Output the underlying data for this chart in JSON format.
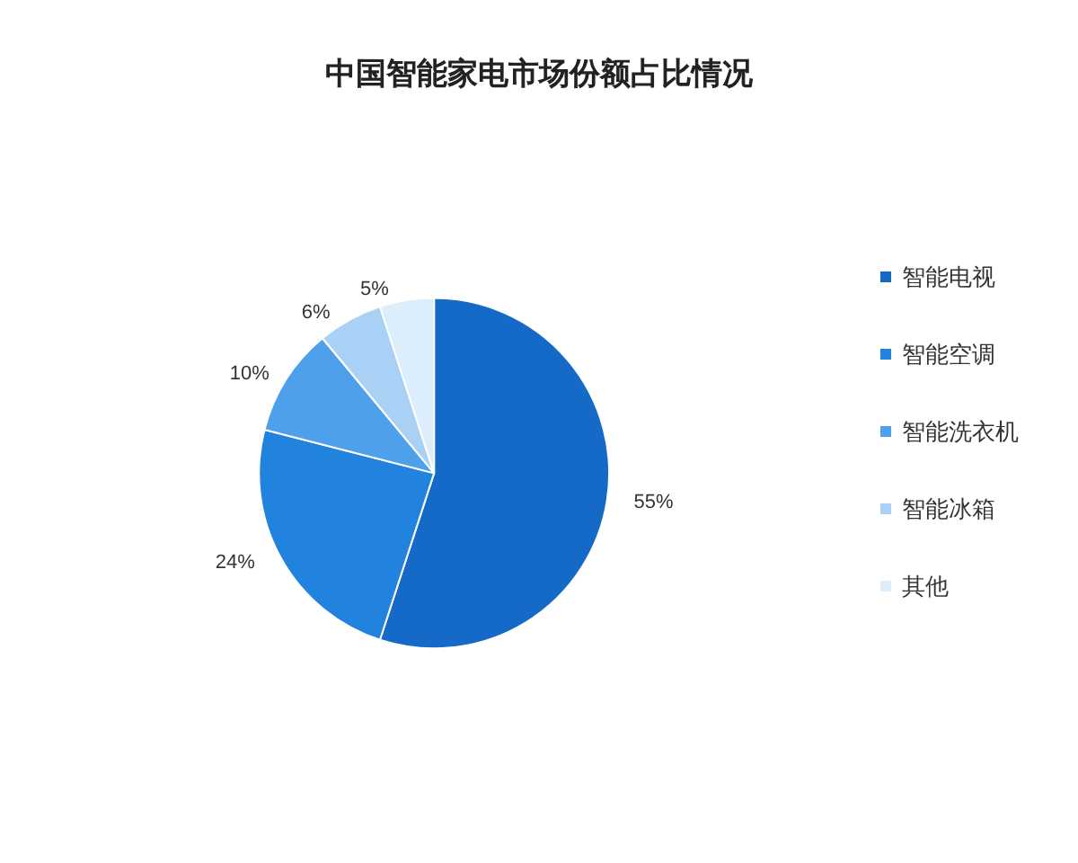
{
  "chart_data": {
    "type": "pie",
    "title": "中国智能家电市场份额占比情况",
    "categories": [
      "智能电视",
      "智能空调",
      "智能洗衣机",
      "智能冰箱",
      "其他"
    ],
    "values": [
      55,
      24,
      10,
      6,
      5
    ],
    "value_labels": [
      "55%",
      "24%",
      "10%",
      "6%",
      "5%"
    ],
    "colors": [
      "#1569c7",
      "#2283de",
      "#4fa0ea",
      "#a9d1f5",
      "#dcedfb"
    ],
    "legend": "right"
  }
}
